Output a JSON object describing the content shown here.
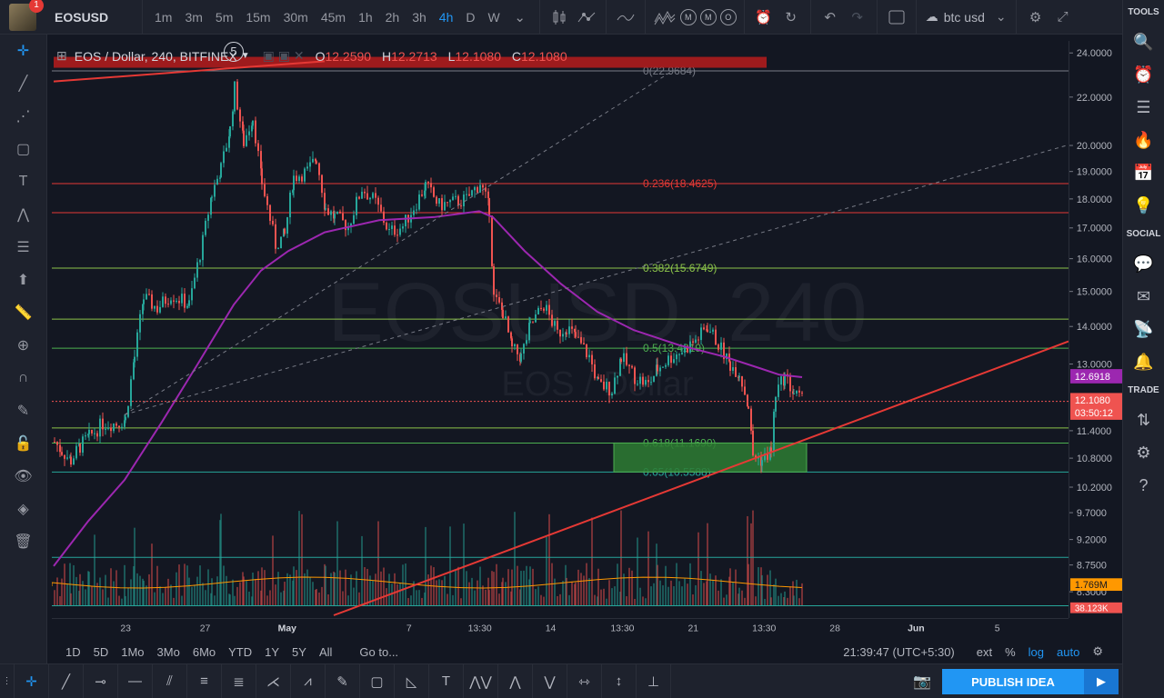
{
  "topbar": {
    "notification_count": "1",
    "symbol": "EOSUSD",
    "intervals": [
      "1m",
      "3m",
      "5m",
      "15m",
      "30m",
      "45m",
      "1h",
      "2h",
      "3h",
      "4h",
      "D",
      "W"
    ],
    "active_interval": "4h",
    "indicator_circles": [
      "M",
      "M",
      "O"
    ],
    "compare_label": "btc usd"
  },
  "legend": {
    "title": "EOS / Dollar, 240, BITFINEX",
    "open_label": "O",
    "open": "12.2590",
    "high_label": "H",
    "high": "12.2713",
    "low_label": "L",
    "low": "12.1080",
    "close_label": "C",
    "close": "12.1080",
    "drawing_count": "5"
  },
  "watermark": {
    "symbol": "EOSUSD, 240",
    "name": "EOS / Dollar"
  },
  "price_axis": {
    "ticks": [
      "24.0000",
      "22.0000",
      "20.0000",
      "19.0000",
      "18.0000",
      "17.0000",
      "16.0000",
      "15.0000",
      "14.0000",
      "13.0000",
      "12.6918",
      "12.1080",
      "11.4000",
      "10.8000",
      "10.2000",
      "9.7000",
      "9.2000",
      "8.7500",
      "8.3000"
    ],
    "ma_label": "12.6918",
    "last_price": "12.1080",
    "countdown": "03:50:12",
    "volume_label": "1.769M",
    "volume_label2": "38.123K"
  },
  "fib_levels": [
    {
      "label": "0(22.9684)",
      "value": 22.9684,
      "color": "#787b86"
    },
    {
      "label": "0.236(18.4625)",
      "value": 18.4625,
      "color": "#e53935"
    },
    {
      "label": "0.382(15.6749)",
      "value": 15.6749,
      "color": "#8bc34a"
    },
    {
      "label": "0.5(13.4219)",
      "value": 13.4219,
      "color": "#4caf50"
    },
    {
      "label": "0.618(11.1690)",
      "value": 11.169,
      "color": "#4caf50"
    },
    {
      "label": "0.65(10.5588)",
      "value": 10.5588,
      "color": "#26a69a"
    }
  ],
  "time_axis": [
    "23",
    "27",
    "May",
    "7",
    "13:30",
    "14",
    "13:30",
    "21",
    "13:30",
    "28",
    "Jun",
    "5"
  ],
  "rangebar": {
    "ranges": [
      "1D",
      "5D",
      "1Mo",
      "3Mo",
      "6Mo",
      "YTD",
      "1Y",
      "5Y",
      "All"
    ],
    "goto": "Go to...",
    "clock": "21:39:47 (UTC+5:30)",
    "ext": "ext",
    "percent": "%",
    "log": "log",
    "auto": "auto"
  },
  "rightbar": {
    "tools_title": "TOOLS",
    "social_title": "SOCIAL",
    "trade_title": "TRADE"
  },
  "publish_label": "PUBLISH IDEA",
  "colors": {
    "bg": "#131722",
    "up": "#26a69a",
    "down": "#ef5350",
    "ma": "#9c27b0",
    "accent": "#2196f3"
  }
}
